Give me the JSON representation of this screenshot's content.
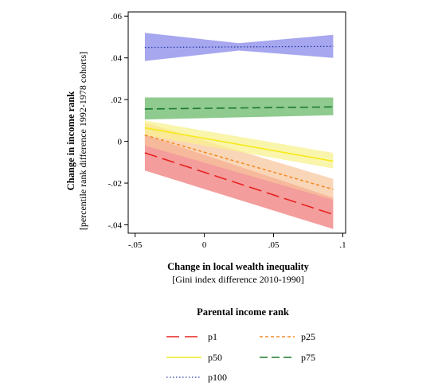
{
  "chart_data": {
    "type": "line",
    "xlabel": "Change in local wealth inequality",
    "xlabel_sub": "[Gini index difference 2010-1990]",
    "ylabel": "Change in income rank",
    "ylabel_sub": "[percentile rank difference 1992-1978 cohorts]",
    "xlim": [
      -0.055,
      0.102
    ],
    "ylim": [
      -0.044,
      0.062
    ],
    "xticks": [
      -0.05,
      0,
      0.05,
      0.1
    ],
    "xtick_labels": [
      "-.05",
      "0",
      ".05",
      ".1"
    ],
    "yticks": [
      0.06,
      0.04,
      0.02,
      0,
      -0.02,
      -0.04
    ],
    "ytick_labels": [
      ".06",
      ".04",
      ".02",
      "0",
      "-.02",
      "-.04"
    ],
    "grid": false,
    "legend_title": "Parental income rank",
    "legend_position": "bottom",
    "series": [
      {
        "name": "p1",
        "color": "#e8231f",
        "band_color": "#f07373",
        "dash": "long-dash",
        "x": [
          -0.043,
          0.093
        ],
        "y": [
          -0.0055,
          -0.035
        ],
        "ci_low": [
          -0.014,
          -0.042
        ],
        "ci_high": [
          0.003,
          -0.027
        ]
      },
      {
        "name": "p25",
        "color": "#f28c28",
        "band_color": "#f8c49a",
        "dash": "short-dash",
        "x": [
          -0.043,
          0.093
        ],
        "y": [
          0.003,
          -0.023
        ],
        "ci_low": [
          -0.002,
          -0.028
        ],
        "ci_high": [
          0.009,
          -0.018
        ]
      },
      {
        "name": "p50",
        "color": "#f6ea1a",
        "band_color": "#f8f18a",
        "dash": "solid",
        "x": [
          -0.043,
          0.093
        ],
        "y": [
          0.0065,
          -0.0095
        ],
        "ci_low": [
          0.003,
          -0.013
        ],
        "ci_high": [
          0.01,
          -0.0055
        ]
      },
      {
        "name": "p75",
        "color": "#1b7a2e",
        "band_color": "#5fb45f",
        "dash": "dash",
        "x": [
          -0.043,
          0.093
        ],
        "y": [
          0.0155,
          0.0165
        ],
        "ci_low": [
          0.0105,
          0.0125
        ],
        "ci_high": [
          0.021,
          0.021
        ]
      },
      {
        "name": "p100",
        "color": "#2b3aa8",
        "band_color": "#8081e8",
        "dash": "dot",
        "x": [
          -0.043,
          0.093
        ],
        "y": [
          0.045,
          0.0455
        ],
        "ci_low": [
          0.0385,
          0.04
        ],
        "ci_high": [
          0.052,
          0.051
        ],
        "mid": {
          "x": 0.025,
          "ci_low": 0.0435,
          "ci_high": 0.047
        }
      }
    ]
  }
}
